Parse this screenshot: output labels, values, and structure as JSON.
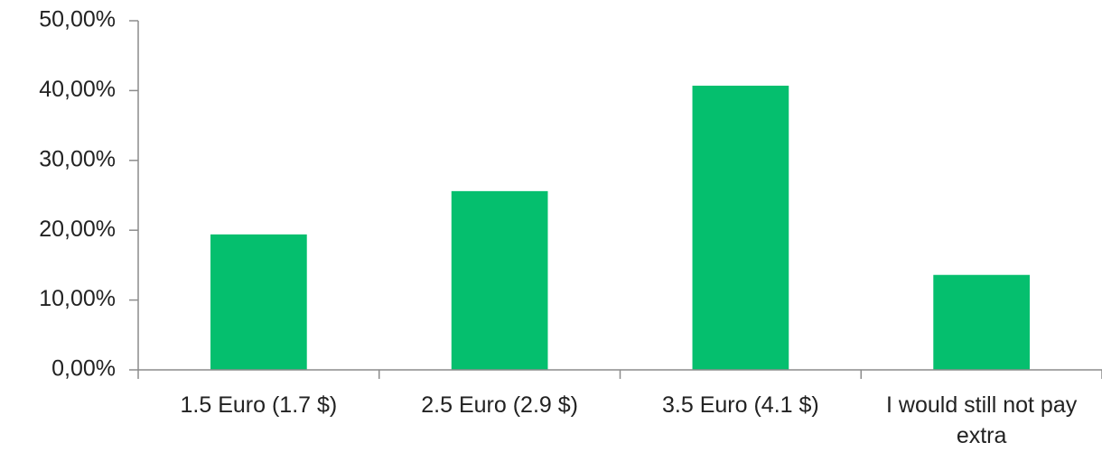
{
  "chart_data": {
    "type": "bar",
    "categories": [
      "1.5 Euro (1.7 $)",
      "2.5 Euro (2.9 $)",
      "3.5 Euro (4.1 $)",
      "I would still not pay extra"
    ],
    "values": [
      19.4,
      25.6,
      40.7,
      13.6
    ],
    "color": "#05bf6e",
    "ylim": [
      0,
      50
    ],
    "yticks": [
      {
        "value": 0,
        "label": "0,00%"
      },
      {
        "value": 10,
        "label": "10,00%"
      },
      {
        "value": 20,
        "label": "20,00%"
      },
      {
        "value": 30,
        "label": "30,00%"
      },
      {
        "value": 40,
        "label": "40,00%"
      },
      {
        "value": 50,
        "label": "50,00%"
      }
    ],
    "grid": false
  }
}
